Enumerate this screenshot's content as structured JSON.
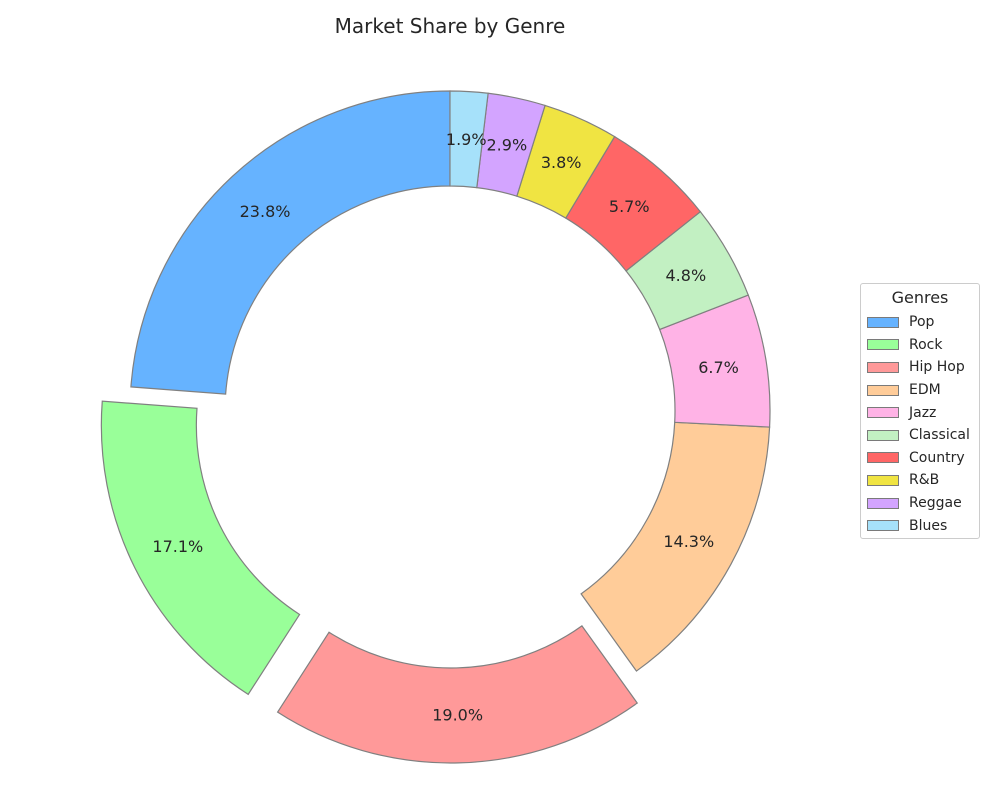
{
  "chart_data": {
    "type": "pie",
    "style": "donut",
    "title": "Market Share by Genre",
    "categories": [
      "Pop",
      "Rock",
      "Hip Hop",
      "EDM",
      "Jazz",
      "Classical",
      "Country",
      "R&B",
      "Reggae",
      "Blues"
    ],
    "values": [
      23.8,
      17.1,
      19.0,
      14.3,
      6.7,
      4.8,
      5.7,
      3.8,
      2.9,
      1.9
    ],
    "value_labels": [
      "23.8%",
      "17.1%",
      "19.0%",
      "14.3%",
      "6.7%",
      "4.8%",
      "5.7%",
      "3.8%",
      "2.9%",
      "1.9%"
    ],
    "colors": [
      "#66b3ff",
      "#99ff99",
      "#ff9999",
      "#ffcc99",
      "#ffb3e6",
      "#c2f0c2",
      "#ff6666",
      "#f0e442",
      "#d3a4ff",
      "#a6e1fa"
    ],
    "exploded": [
      "Rock",
      "Hip Hop"
    ],
    "legend_title": "Genres",
    "legend_position": "right"
  }
}
